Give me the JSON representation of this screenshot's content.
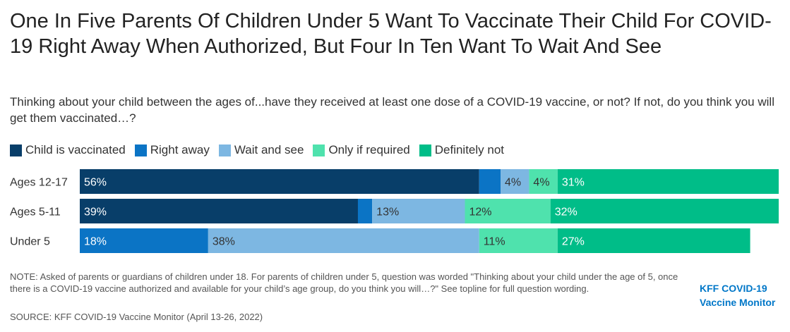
{
  "title": "One In Five Parents Of Children Under 5 Want To Vaccinate Their Child For COVID-19 Right Away When Authorized, But Four In Ten Want To Wait And See",
  "subtitle": "Thinking about your child between the ages of...have they received at least one dose of a COVID-19 vaccine, or not? If not, do you think you will get them vaccinated…?",
  "note": "NOTE: Asked of parents or guardians of children under 18. For parents of children under 5, question was worded \"Thinking about your child under the age of 5, once there is a COVID-19 vaccine authorized and available for your child’s age group, do you think you will…?\" See topline for full question wording.",
  "source": "SOURCE: KFF COVID-19 Vaccine Monitor (April 13-26, 2022)",
  "logo": {
    "line1": "KFF COVID-19",
    "line2": "Vaccine Monitor"
  },
  "chart_data": {
    "type": "bar",
    "orientation": "horizontal",
    "stacked": true,
    "categories": [
      "Ages 12-17",
      "Ages 5-11",
      "Under 5"
    ],
    "series": [
      {
        "name": "Child is vaccinated",
        "color": "#083e69",
        "values": [
          56,
          39,
          0
        ],
        "labels": [
          "56%",
          "39%",
          ""
        ],
        "label_color": "#ffffff"
      },
      {
        "name": "Right away",
        "color": "#0b74c5",
        "values": [
          3,
          2,
          18
        ],
        "labels": [
          "",
          "",
          "18%"
        ],
        "label_color": "#ffffff"
      },
      {
        "name": "Wait and see",
        "color": "#7db7e2",
        "values": [
          4,
          13,
          38
        ],
        "labels": [
          "4%",
          "13%",
          "38%"
        ],
        "label_color": "#333333"
      },
      {
        "name": "Only if required",
        "color": "#4fe2ad",
        "values": [
          4,
          12,
          11
        ],
        "labels": [
          "4%",
          "12%",
          "11%"
        ],
        "label_color": "#333333"
      },
      {
        "name": "Definitely not",
        "color": "#00bd88",
        "values": [
          31,
          32,
          27
        ],
        "labels": [
          "31%",
          "32%",
          "27%"
        ],
        "label_color": "#ffffff"
      }
    ],
    "xlim": [
      0,
      98
    ],
    "grid": false,
    "legend_position": "top-left"
  }
}
